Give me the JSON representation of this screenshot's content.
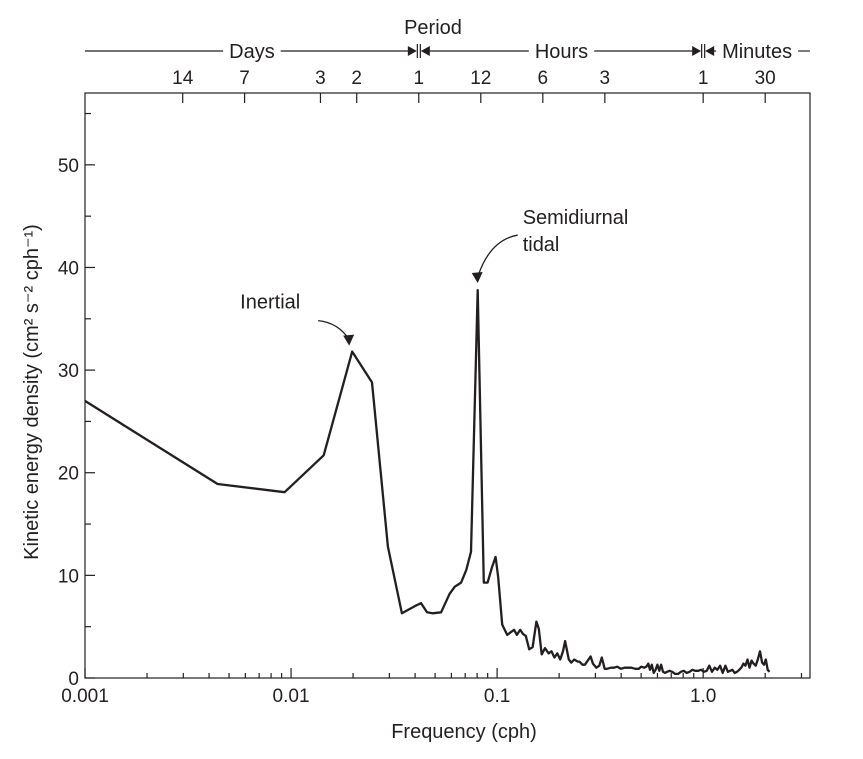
{
  "chart_data": {
    "type": "line",
    "title": "",
    "xlabel": "Frequency (cph)",
    "ylabel": "Kinetic energy density (cm² s⁻² cph⁻¹)",
    "x_scale": "log",
    "xlim": [
      0.001,
      3.3
    ],
    "ylim": [
      0,
      57
    ],
    "grid": false,
    "legend": "none",
    "x_ticks": [
      {
        "value": 0.001,
        "label": "0.001"
      },
      {
        "value": 0.01,
        "label": "0.01"
      },
      {
        "value": 0.1,
        "label": "0.1"
      },
      {
        "value": 1.0,
        "label": "1.0"
      }
    ],
    "y_ticks": [
      {
        "value": 0,
        "label": "0"
      },
      {
        "value": 10,
        "label": "10"
      },
      {
        "value": 20,
        "label": "20"
      },
      {
        "value": 30,
        "label": "30"
      },
      {
        "value": 40,
        "label": "40"
      },
      {
        "value": 50,
        "label": "50"
      }
    ],
    "top_axis": {
      "title": "Period",
      "bands": [
        {
          "label": "Days",
          "from": 0.001,
          "to": 0.0417
        },
        {
          "label": "Hours",
          "from": 0.0417,
          "to": 1.0
        },
        {
          "label": "Minutes",
          "from": 1.0,
          "to": 3.3
        }
      ],
      "ticks": [
        {
          "label": "14",
          "freq": 0.00298
        },
        {
          "label": "7",
          "freq": 0.00595
        },
        {
          "label": "3",
          "freq": 0.01389
        },
        {
          "label": "2",
          "freq": 0.02083
        },
        {
          "label": "1",
          "freq": 0.04167
        },
        {
          "label": "12",
          "freq": 0.08333
        },
        {
          "label": "6",
          "freq": 0.16667
        },
        {
          "label": "3",
          "freq": 0.33333
        },
        {
          "label": "1",
          "freq": 1.0
        },
        {
          "label": "30",
          "freq": 2.0
        }
      ]
    },
    "annotations": [
      {
        "lines": [
          "Inertial"
        ],
        "x": 0.0198,
        "y": 31.8
      },
      {
        "lines": [
          "Semidiurnal",
          "tidal"
        ],
        "x": 0.0805,
        "y": 37.8
      }
    ],
    "series": [
      {
        "x": [
          0.001,
          0.0044,
          0.0093,
          0.0144,
          0.0198,
          0.0247,
          0.0295,
          0.0345,
          0.0398,
          0.0427,
          0.0457,
          0.0486,
          0.0535,
          0.0588,
          0.0623,
          0.0669,
          0.0708,
          0.0747,
          0.0805,
          0.0862,
          0.0899,
          0.0945,
          0.0983,
          0.1012,
          0.1058,
          0.1119,
          0.1172,
          0.1209,
          0.1248,
          0.1294,
          0.1334,
          0.1378,
          0.1431,
          0.1486,
          0.1552,
          0.1593,
          0.1646,
          0.1708,
          0.1778,
          0.1836,
          0.1897,
          0.1959,
          0.2023,
          0.2089,
          0.2138,
          0.2228,
          0.2291,
          0.2366,
          0.246,
          0.2512,
          0.2594,
          0.2667,
          0.2754,
          0.2844,
          0.2917,
          0.3034,
          0.3133,
          0.3222,
          0.3327,
          0.342,
          0.3568,
          0.3698,
          0.3828,
          0.399,
          0.415,
          0.4315,
          0.4487,
          0.4677,
          0.4864,
          0.5012,
          0.5176,
          0.5297,
          0.542,
          0.5521,
          0.5636,
          0.5754,
          0.5875,
          0.5998,
          0.6124,
          0.6252,
          0.6383,
          0.653,
          0.6681,
          0.6873,
          0.7079,
          0.7311,
          0.7551,
          0.7798,
          0.8054,
          0.8318,
          0.859,
          0.8872,
          0.9163,
          0.9462,
          0.9772,
          1.0093,
          1.0399,
          1.0715,
          1.1041,
          1.1376,
          1.1722,
          1.2078,
          1.2445,
          1.2823,
          1.3183,
          1.3521,
          1.3867,
          1.4222,
          1.4588,
          1.4962,
          1.5311,
          1.567,
          1.6036,
          1.6406,
          1.6786,
          1.7179,
          1.758,
          1.7989,
          1.8408,
          1.8874,
          1.9322,
          1.9726,
          2.0138,
          2.0559,
          2.0989
        ],
        "values": [
          27.0,
          18.9,
          18.1,
          21.7,
          31.8,
          28.8,
          12.8,
          6.3,
          7.0,
          7.3,
          6.4,
          6.3,
          6.4,
          8.2,
          8.9,
          9.3,
          10.5,
          12.3,
          37.8,
          9.3,
          9.3,
          10.8,
          11.8,
          9.8,
          5.2,
          4.2,
          4.5,
          4.7,
          4.2,
          4.7,
          4.3,
          4.1,
          2.8,
          3.0,
          5.5,
          4.8,
          2.3,
          2.9,
          2.4,
          2.6,
          2.0,
          2.4,
          1.8,
          2.6,
          3.6,
          1.8,
          1.5,
          1.8,
          1.6,
          1.6,
          1.3,
          1.3,
          1.7,
          2.1,
          1.4,
          1.0,
          1.2,
          2.0,
          0.9,
          0.9,
          1.0,
          1.0,
          1.1,
          0.9,
          1.0,
          1.0,
          1.0,
          0.9,
          0.9,
          1.1,
          1.0,
          1.1,
          1.4,
          0.8,
          1.3,
          0.5,
          0.8,
          1.3,
          0.7,
          1.3,
          0.6,
          0.5,
          0.6,
          0.7,
          0.6,
          0.4,
          0.4,
          0.6,
          0.7,
          0.5,
          0.6,
          0.8,
          0.7,
          0.7,
          0.8,
          0.6,
          0.7,
          1.2,
          0.6,
          1.0,
          0.8,
          1.2,
          0.5,
          1.2,
          0.6,
          0.7,
          0.8,
          0.5,
          0.6,
          0.8,
          1.0,
          1.4,
          1.2,
          1.8,
          1.0,
          1.7,
          1.4,
          1.2,
          1.8,
          2.6,
          1.5,
          1.3,
          1.8,
          0.8,
          0.6
        ]
      }
    ]
  }
}
